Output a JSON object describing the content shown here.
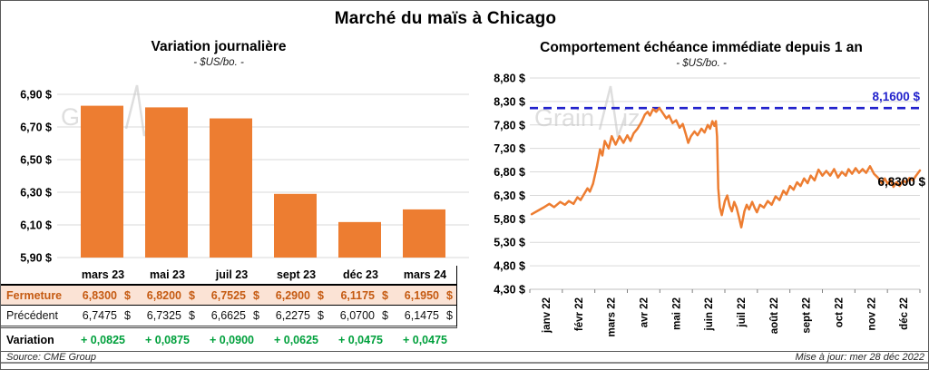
{
  "page": {
    "title": "Marché du maïs à Chicago"
  },
  "left_panel": {
    "title": "Variation journalière",
    "subtitle": "- $US/bo. -",
    "table": {
      "currency_symbol": "$",
      "columns": [
        "mars 23",
        "mai 23",
        "juil 23",
        "sept 23",
        "déc 23",
        "mars 24"
      ],
      "rows": [
        {
          "id": "fermeture",
          "label": "Fermeture",
          "values": [
            "6,8300",
            "6,8200",
            "6,7525",
            "6,2900",
            "6,1175",
            "6,1950"
          ],
          "with_currency": true
        },
        {
          "id": "precedent",
          "label": "Précédent",
          "values": [
            "6,7475",
            "6,7325",
            "6,6625",
            "6,2275",
            "6,0700",
            "6,1475"
          ],
          "with_currency": true
        },
        {
          "id": "variation",
          "label": "Variation",
          "values": [
            "+ 0,0825",
            "+ 0,0875",
            "+ 0,0900",
            "+ 0,0625",
            "+ 0,0475",
            "+ 0,0475"
          ],
          "with_currency": false
        }
      ]
    }
  },
  "right_panel": {
    "title": "Comportement échéance immédiate depuis 1 an",
    "subtitle": "- $US/bo. -",
    "reference_label": "8,1600 $",
    "last_label": "6,8300 $"
  },
  "watermark": {
    "part1": "Grain",
    "part2": "iz"
  },
  "footer": {
    "source": "Source: CME Group",
    "updated": "Mise à jour: mer 28 déc 2022"
  },
  "colors": {
    "orange": "#ED7D31",
    "peach": "#FBE3D5",
    "brown": "#C55A11",
    "green": "#00A03C",
    "blue": "#2222CC",
    "grid": "#D9D9D9",
    "axis": "#BFBFBF",
    "watermark": "#C4C4C4"
  },
  "chart_data": [
    {
      "type": "bar",
      "title": "Variation journalière",
      "ylabel": "$US/bo.",
      "categories": [
        "mars 23",
        "mai 23",
        "juil 23",
        "sept 23",
        "déc 23",
        "mars 24"
      ],
      "values": [
        6.83,
        6.82,
        6.7525,
        6.29,
        6.1175,
        6.195
      ],
      "ylim": [
        5.9,
        6.9
      ],
      "ytick_step": 0.2,
      "ytick_labels": [
        "6,90 $",
        "6,70 $",
        "6,50 $",
        "6,30 $",
        "6,10 $",
        "5,90 $"
      ],
      "grid": true,
      "legend": false
    },
    {
      "type": "line",
      "title": "Comportement échéance immédiate depuis 1 an",
      "ylabel": "$US/bo.",
      "x_categories": [
        "janv 22",
        "févr 22",
        "mars 22",
        "avr 22",
        "mai 22",
        "juin 22",
        "juil 22",
        "août 22",
        "sept 22",
        "oct 22",
        "nov 22",
        "déc 22"
      ],
      "ylim": [
        4.3,
        8.8
      ],
      "ytick_step": 0.5,
      "ytick_labels": [
        "8,80 $",
        "8,30 $",
        "7,80 $",
        "7,30 $",
        "6,80 $",
        "6,30 $",
        "5,80 $",
        "5,30 $",
        "4,80 $",
        "4,30 $"
      ],
      "reference_value": 8.16,
      "last_value": 6.83,
      "grid": true,
      "legend": false,
      "points": [
        [
          0.005,
          5.9
        ],
        [
          0.02,
          5.97
        ],
        [
          0.035,
          6.04
        ],
        [
          0.05,
          6.12
        ],
        [
          0.062,
          6.05
        ],
        [
          0.078,
          6.16
        ],
        [
          0.09,
          6.1
        ],
        [
          0.1,
          6.18
        ],
        [
          0.112,
          6.12
        ],
        [
          0.122,
          6.26
        ],
        [
          0.13,
          6.2
        ],
        [
          0.14,
          6.34
        ],
        [
          0.148,
          6.45
        ],
        [
          0.154,
          6.38
        ],
        [
          0.162,
          6.55
        ],
        [
          0.172,
          6.92
        ],
        [
          0.18,
          7.28
        ],
        [
          0.186,
          7.15
        ],
        [
          0.192,
          7.46
        ],
        [
          0.202,
          7.3
        ],
        [
          0.21,
          7.56
        ],
        [
          0.22,
          7.38
        ],
        [
          0.23,
          7.56
        ],
        [
          0.24,
          7.42
        ],
        [
          0.25,
          7.58
        ],
        [
          0.258,
          7.46
        ],
        [
          0.266,
          7.62
        ],
        [
          0.276,
          7.72
        ],
        [
          0.286,
          7.86
        ],
        [
          0.295,
          8.02
        ],
        [
          0.302,
          8.08
        ],
        [
          0.308,
          8.0
        ],
        [
          0.316,
          8.14
        ],
        [
          0.324,
          8.08
        ],
        [
          0.332,
          8.16
        ],
        [
          0.342,
          8.04
        ],
        [
          0.35,
          7.94
        ],
        [
          0.357,
          8.0
        ],
        [
          0.366,
          7.84
        ],
        [
          0.375,
          7.9
        ],
        [
          0.384,
          7.74
        ],
        [
          0.392,
          7.82
        ],
        [
          0.4,
          7.6
        ],
        [
          0.406,
          7.42
        ],
        [
          0.413,
          7.56
        ],
        [
          0.422,
          7.66
        ],
        [
          0.43,
          7.58
        ],
        [
          0.44,
          7.72
        ],
        [
          0.448,
          7.64
        ],
        [
          0.456,
          7.8
        ],
        [
          0.462,
          7.72
        ],
        [
          0.468,
          7.88
        ],
        [
          0.473,
          7.78
        ],
        [
          0.477,
          7.88
        ],
        [
          0.48,
          7.55
        ],
        [
          0.483,
          6.45
        ],
        [
          0.487,
          6.05
        ],
        [
          0.492,
          5.88
        ],
        [
          0.5,
          6.18
        ],
        [
          0.506,
          6.3
        ],
        [
          0.512,
          6.08
        ],
        [
          0.518,
          5.96
        ],
        [
          0.524,
          6.16
        ],
        [
          0.53,
          6.04
        ],
        [
          0.536,
          5.84
        ],
        [
          0.542,
          5.62
        ],
        [
          0.55,
          5.96
        ],
        [
          0.556,
          6.1
        ],
        [
          0.562,
          6.0
        ],
        [
          0.57,
          6.16
        ],
        [
          0.576,
          6.04
        ],
        [
          0.582,
          5.94
        ],
        [
          0.59,
          6.1
        ],
        [
          0.6,
          6.04
        ],
        [
          0.61,
          6.18
        ],
        [
          0.62,
          6.1
        ],
        [
          0.63,
          6.28
        ],
        [
          0.64,
          6.2
        ],
        [
          0.65,
          6.4
        ],
        [
          0.658,
          6.32
        ],
        [
          0.667,
          6.5
        ],
        [
          0.676,
          6.42
        ],
        [
          0.685,
          6.58
        ],
        [
          0.694,
          6.5
        ],
        [
          0.703,
          6.66
        ],
        [
          0.712,
          6.56
        ],
        [
          0.72,
          6.72
        ],
        [
          0.73,
          6.62
        ],
        [
          0.74,
          6.85
        ],
        [
          0.75,
          6.72
        ],
        [
          0.76,
          6.82
        ],
        [
          0.77,
          6.72
        ],
        [
          0.78,
          6.86
        ],
        [
          0.79,
          6.68
        ],
        [
          0.8,
          6.8
        ],
        [
          0.81,
          6.72
        ],
        [
          0.817,
          6.86
        ],
        [
          0.826,
          6.76
        ],
        [
          0.835,
          6.88
        ],
        [
          0.844,
          6.78
        ],
        [
          0.853,
          6.86
        ],
        [
          0.862,
          6.78
        ],
        [
          0.872,
          6.92
        ],
        [
          0.882,
          6.76
        ],
        [
          0.892,
          6.68
        ],
        [
          0.902,
          6.56
        ],
        [
          0.91,
          6.66
        ],
        [
          0.917,
          6.55
        ],
        [
          0.925,
          6.63
        ],
        [
          0.932,
          6.48
        ],
        [
          0.94,
          6.58
        ],
        [
          0.948,
          6.5
        ],
        [
          0.957,
          6.62
        ],
        [
          0.965,
          6.57
        ],
        [
          0.973,
          6.67
        ],
        [
          0.982,
          6.62
        ],
        [
          0.99,
          6.72
        ],
        [
          1.0,
          6.83
        ]
      ]
    }
  ]
}
